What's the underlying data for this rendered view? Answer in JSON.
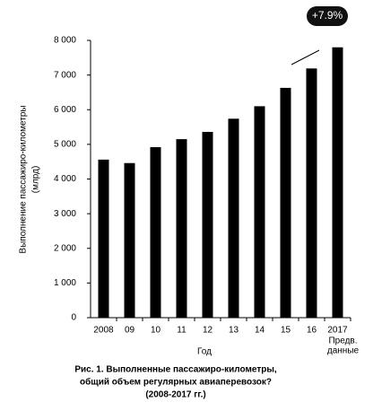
{
  "chart_data": {
    "type": "bar",
    "y_label": [
      "Выполнение пассажиро-километры",
      "(млрд)"
    ],
    "x_label": "Год",
    "caption": [
      "Рис. 1. Выполненные пассажиро-километры,",
      "общий объем регулярных авиаперевозок?",
      "(2008-2017 гг.)"
    ],
    "categories": [
      "2008",
      "09",
      "10",
      "11",
      "12",
      "13",
      "14",
      "15",
      "16",
      "2017"
    ],
    "category_note": [
      "Предв.",
      "данные"
    ],
    "values": [
      4560,
      4460,
      4920,
      5150,
      5360,
      5740,
      6100,
      6630,
      7190,
      7800
    ],
    "color": "#000000",
    "annotation": "+7.9%",
    "ylim": [
      0,
      8000
    ],
    "yticks": [
      0,
      {
        "value": 1000,
        "label": "1 000"
      },
      {
        "value": 2000,
        "label": "2 000"
      },
      {
        "value": 3000,
        "label": "3 000"
      },
      {
        "value": 4000,
        "label": "4 000"
      },
      {
        "value": 5000,
        "label": "5 000"
      },
      {
        "value": 6000,
        "label": "6 000"
      },
      {
        "value": 7000,
        "label": "7 000"
      },
      {
        "value": 8000,
        "label": "8 000"
      }
    ]
  }
}
